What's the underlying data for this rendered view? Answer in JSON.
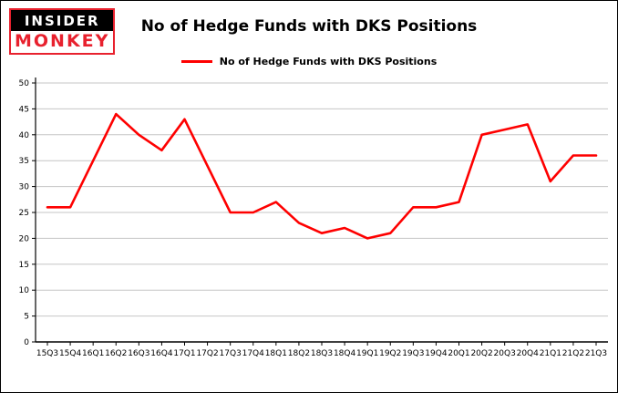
{
  "logo": {
    "top": "INSIDER",
    "bottom": "MONKEY"
  },
  "header": {
    "title": "No of Hedge Funds with DKS Positions"
  },
  "legend": {
    "label": "No of Hedge Funds with DKS Positions"
  },
  "colors": {
    "line": "#fe0000",
    "grid": "#c6c6c6",
    "axis": "#000000",
    "logo_red": "#e8212e",
    "background": "#ffffff"
  },
  "chart_data": {
    "type": "line",
    "title": "No of Hedge Funds with DKS Positions",
    "categories": [
      "15Q3",
      "15Q4",
      "16Q1",
      "16Q2",
      "16Q3",
      "16Q4",
      "17Q1",
      "17Q2",
      "17Q3",
      "17Q4",
      "18Q1",
      "18Q2",
      "18Q3",
      "18Q4",
      "19Q1",
      "19Q2",
      "19Q3",
      "19Q4",
      "20Q1",
      "20Q2",
      "20Q3",
      "20Q4",
      "21Q1",
      "21Q2",
      "21Q3"
    ],
    "series": [
      {
        "name": "No of Hedge Funds with DKS Positions",
        "values": [
          26,
          26,
          35,
          44,
          40,
          37,
          43,
          34,
          25,
          25,
          27,
          23,
          21,
          22,
          20,
          21,
          26,
          26,
          27,
          40,
          41,
          42,
          31,
          36,
          36
        ]
      }
    ],
    "xlabel": "",
    "ylabel": "",
    "ylim": [
      0,
      50
    ],
    "ytick_interval": 5,
    "grid": true,
    "legend_position": "top-center"
  }
}
